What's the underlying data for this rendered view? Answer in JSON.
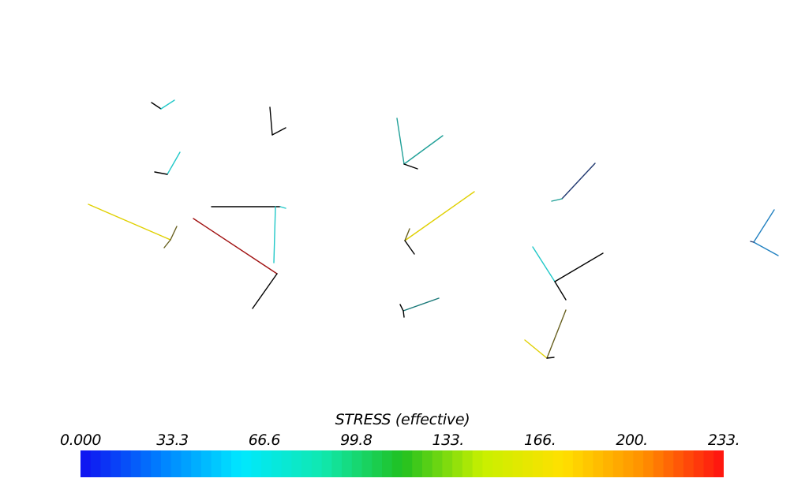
{
  "legend": {
    "title": "STRESS (effective)",
    "ticks": [
      "0.000",
      "33.3",
      "66.6",
      "99.8",
      "133.",
      "166.",
      "200.",
      "233."
    ],
    "min": 0.0,
    "max": 233.0,
    "colormap": [
      "#1010f0",
      "#0080ff",
      "#00e8ff",
      "#10e8b0",
      "#20c020",
      "#c8f000",
      "#ffe000",
      "#ff9000",
      "#ff1010"
    ]
  },
  "colors": {
    "black": "#000000",
    "cyan": "#20c8c8",
    "teal": "#20a098",
    "yellow": "#e0d000",
    "darkred": "#a01010",
    "navy": "#203870",
    "olive": "#686020",
    "steel": "#2080c0",
    "teal_dark": "#187878"
  }
}
